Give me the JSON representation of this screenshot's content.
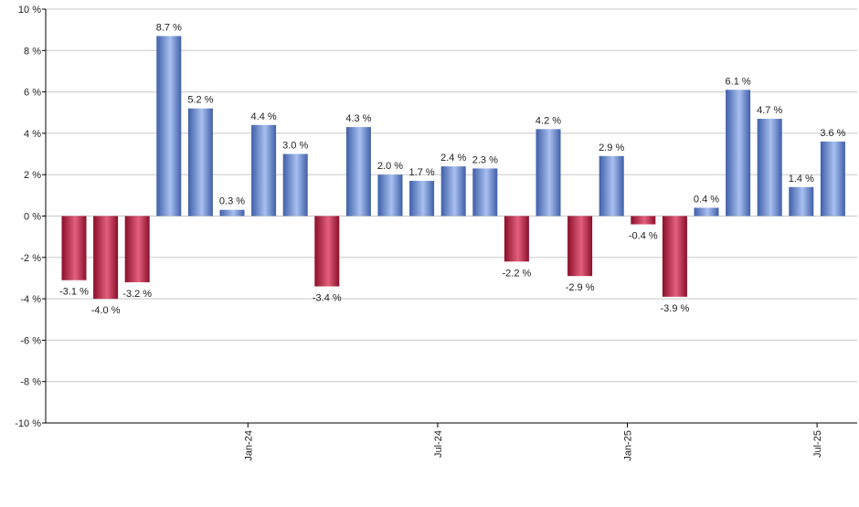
{
  "chart_data": {
    "type": "bar",
    "title": "",
    "xlabel": "",
    "ylabel": "",
    "unit": "%",
    "ylim": [
      -10,
      10
    ],
    "yticks": [
      10,
      8,
      6,
      4,
      2,
      0,
      -2,
      -4,
      -6,
      -8,
      -10
    ],
    "ytick_labels": [
      "10 %",
      "8 %",
      "6 %",
      "4 %",
      "2 %",
      "0 %",
      "-2 %",
      "-4 %",
      "-6 %",
      "-8 %",
      "-10 %"
    ],
    "grid": true,
    "values": [
      -3.1,
      -4.0,
      -3.2,
      8.7,
      5.2,
      0.3,
      4.4,
      3.0,
      -3.4,
      4.3,
      2.0,
      1.7,
      2.4,
      2.3,
      -2.2,
      4.2,
      -2.9,
      2.9,
      -0.4,
      -3.9,
      0.4,
      6.1,
      4.7,
      1.4,
      3.6
    ],
    "value_labels": [
      "-3.1 %",
      "-4.0 %",
      "-3.2 %",
      "8.7 %",
      "5.2 %",
      "0.3 %",
      "4.4 %",
      "3.0 %",
      "-3.4 %",
      "4.3 %",
      "2.0 %",
      "1.7 %",
      "2.4 %",
      "2.3 %",
      "-2.2 %",
      "4.2 %",
      "-2.9 %",
      "2.9 %",
      "-0.4 %",
      "-3.9 %",
      "0.4 %",
      "6.1 %",
      "4.7 %",
      "1.4 %",
      "3.6 %"
    ],
    "x_tick_labels": [
      {
        "label": "Jan-24",
        "index": 5.5
      },
      {
        "label": "Jul-24",
        "index": 11.5
      },
      {
        "label": "Jan-25",
        "index": 17.5
      },
      {
        "label": "Jul-25",
        "index": 23.5
      }
    ],
    "colors": {
      "positive_dark": "#3f5fa8",
      "positive_light": "#a9c0f0",
      "negative_dark": "#8a0f2a",
      "negative_light": "#e4607c",
      "grid": "#c8c8c8",
      "axis": "#000000"
    }
  }
}
